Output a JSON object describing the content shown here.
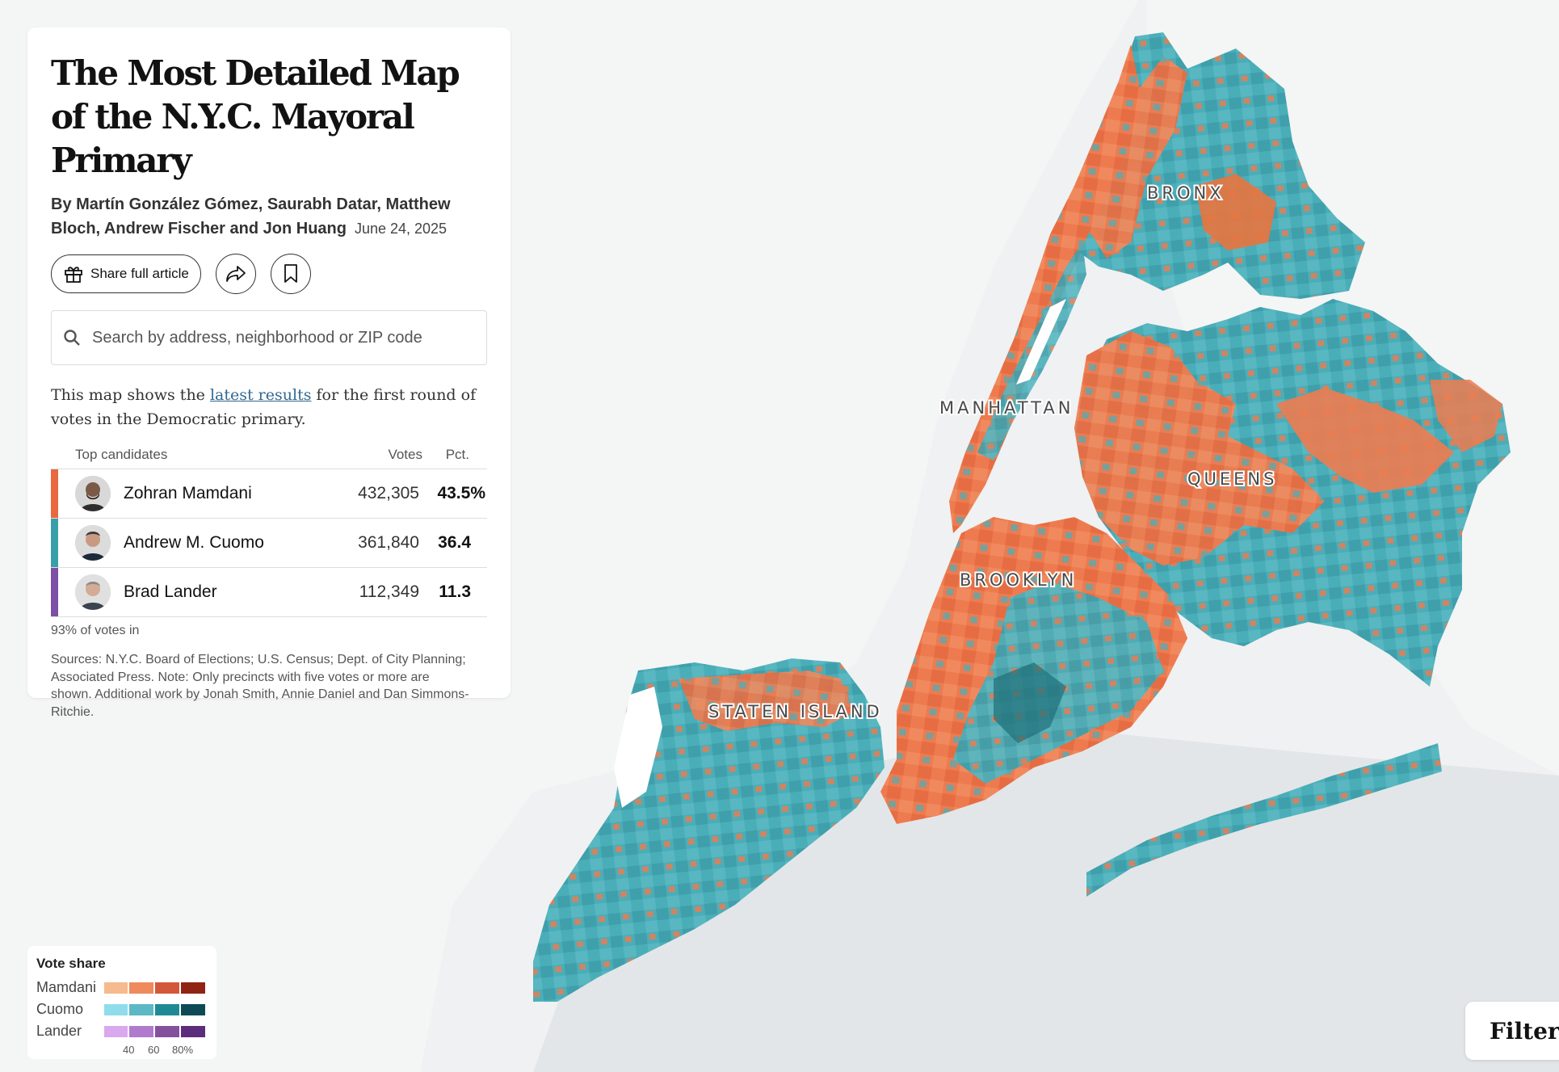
{
  "article": {
    "title": "The Most Detailed Map of the N.Y.C. Mayoral Primary",
    "byline": "By Martín González Gómez, Saurabh Datar, Matthew Bloch, Andrew Fischer and Jon Huang",
    "date": "June 24, 2025",
    "share_label": "Share full article"
  },
  "search": {
    "placeholder": "Search by address, neighborhood or ZIP code"
  },
  "intro": {
    "before": "This map shows the ",
    "link": "latest results",
    "after": " for the first round of votes in the Democratic primary."
  },
  "results": {
    "headers": {
      "candidates": "Top candidates",
      "votes": "Votes",
      "pct": "Pct."
    },
    "rows": [
      {
        "name": "Zohran Mamdani",
        "votes": "432,305",
        "pct": "43.5%",
        "color": "#e8683f"
      },
      {
        "name": "Andrew M. Cuomo",
        "votes": "361,840",
        "pct": "36.4",
        "color": "#3a9ea8"
      },
      {
        "name": "Brad Lander",
        "votes": "112,349",
        "pct": "11.3",
        "color": "#7e4fa6"
      }
    ],
    "reporting": "93% of votes in",
    "sources": "Sources: N.Y.C. Board of Elections; U.S. Census; Dept. of City Planning; Associated Press. Note: Only precincts with five votes or more are shown. Additional work by Jonah Smith, Annie Daniel and Dan Simmons-Ritchie."
  },
  "map": {
    "labels": {
      "bronx": "BRONX",
      "manhattan": "MANHATTAN",
      "queens": "QUEENS",
      "brooklyn": "BROOKLYN",
      "staten_island": "STATEN ISLAND"
    },
    "colors": {
      "water": "#e3e6e8",
      "land": "#f4f5f5",
      "mamdani": "#ee7b4f",
      "cuomo": "#4aaeb9",
      "lander": "#b87fd6"
    }
  },
  "legend": {
    "title": "Vote share",
    "rows": [
      {
        "name": "Mamdani",
        "swatches": [
          "#f7b98e",
          "#ee8a5c",
          "#d3583a",
          "#8f2414"
        ]
      },
      {
        "name": "Cuomo",
        "swatches": [
          "#8fdcec",
          "#5bb8c4",
          "#1f8a96",
          "#0e4a56"
        ]
      },
      {
        "name": "Lander",
        "swatches": [
          "#d9a8ef",
          "#b07bcf",
          "#84519f",
          "#5b2d7c"
        ]
      }
    ],
    "ticks": [
      "40",
      "60",
      "80%"
    ]
  },
  "filter": {
    "label": "Filter b"
  }
}
